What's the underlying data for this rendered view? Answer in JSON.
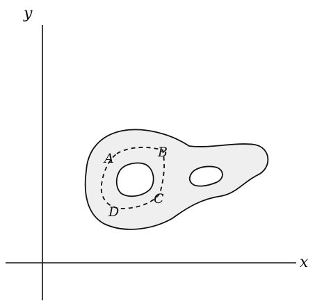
{
  "axes": {
    "x_label": "x",
    "y_label": "y"
  },
  "points": {
    "a": "A",
    "b": "B",
    "c": "C",
    "d": "D"
  },
  "colors": {
    "line": "#111111",
    "region_fill": "#efefef",
    "hole_fill": "#ffffff"
  }
}
